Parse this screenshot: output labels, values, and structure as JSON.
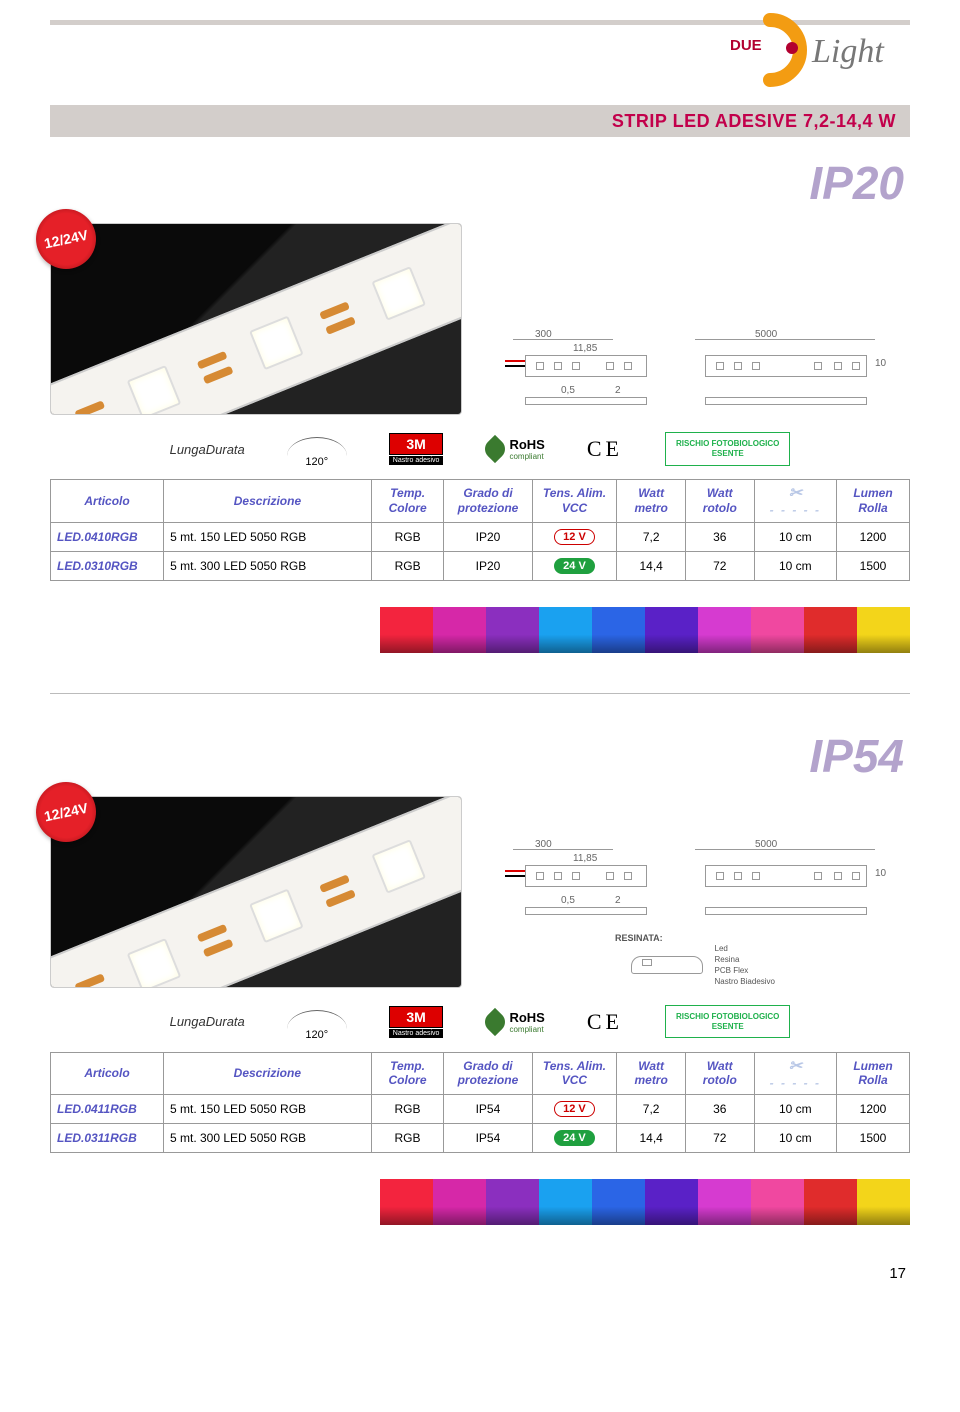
{
  "logo": {
    "prefix": "DUE",
    "main": "Light"
  },
  "title": "STRIP LED ADESIVE 7,2-14,4 W",
  "voltage_badge": "12/24V",
  "section1": {
    "ip_label": "IP20"
  },
  "section2": {
    "ip_label": "IP54"
  },
  "diagram": {
    "dim_300": "300",
    "dim_1185": "11,85",
    "dim_5000": "5000",
    "dim_05": "0,5",
    "dim_2": "2",
    "dim_10": "10"
  },
  "resin": {
    "title": "RESINATA:",
    "led": "Led",
    "resina": "Resina",
    "pcb": "PCB Flex",
    "nastro": "Nastro Biadesivo"
  },
  "badges": {
    "durata": "LungaDurata",
    "angle": "120°",
    "threem": "3M",
    "threem_sub": "Nastro adesivo",
    "rohs": "RoHS",
    "rohs_sub": "compliant",
    "ce": "CE",
    "risk_l1": "RISCHIO FOTOBIOLOGICO",
    "risk_l2": "ESENTE"
  },
  "headers": {
    "articolo": "Articolo",
    "descrizione": "Descrizione",
    "temp_colore": "Temp.\nColore",
    "grado": "Grado di\nprotezione",
    "tens": "Tens. Alim.\nVCC",
    "watt_metro": "Watt\nmetro",
    "watt_rotolo": "Watt\nrotolo",
    "scissors": "✂",
    "lumen": "Lumen\nRolla"
  },
  "table1": [
    {
      "code": "LED.0410RGB",
      "desc": "5 mt. 150 LED 5050 RGB",
      "colore": "RGB",
      "grado": "IP20",
      "tens": "12 V",
      "pill": "red",
      "wm": "7,2",
      "wr": "36",
      "cut": "10 cm",
      "lum": "1200"
    },
    {
      "code": "LED.0310RGB",
      "desc": "5 mt. 300 LED 5050 RGB",
      "colore": "RGB",
      "grado": "IP20",
      "tens": "24 V",
      "pill": "green",
      "wm": "14,4",
      "wr": "72",
      "cut": "10 cm",
      "lum": "1500"
    }
  ],
  "table2": [
    {
      "code": "LED.0411RGB",
      "desc": "5 mt. 150 LED 5050 RGB",
      "colore": "RGB",
      "grado": "IP54",
      "tens": "12 V",
      "pill": "red",
      "wm": "7,2",
      "wr": "36",
      "cut": "10 cm",
      "lum": "1200"
    },
    {
      "code": "LED.0311RGB",
      "desc": "5 mt. 300 LED 5050 RGB",
      "colore": "RGB",
      "grado": "IP54",
      "tens": "24 V",
      "pill": "green",
      "wm": "14,4",
      "wr": "72",
      "cut": "10 cm",
      "lum": "1500"
    }
  ],
  "rgb_strip_colors": [
    "#f3243e",
    "#d628a8",
    "#8b2fbf",
    "#1aa1f0",
    "#2b65e6",
    "#5a21c7",
    "#d63bd0",
    "#f048a0",
    "#e02c2c",
    "#f3d51a"
  ],
  "page_number": "17"
}
